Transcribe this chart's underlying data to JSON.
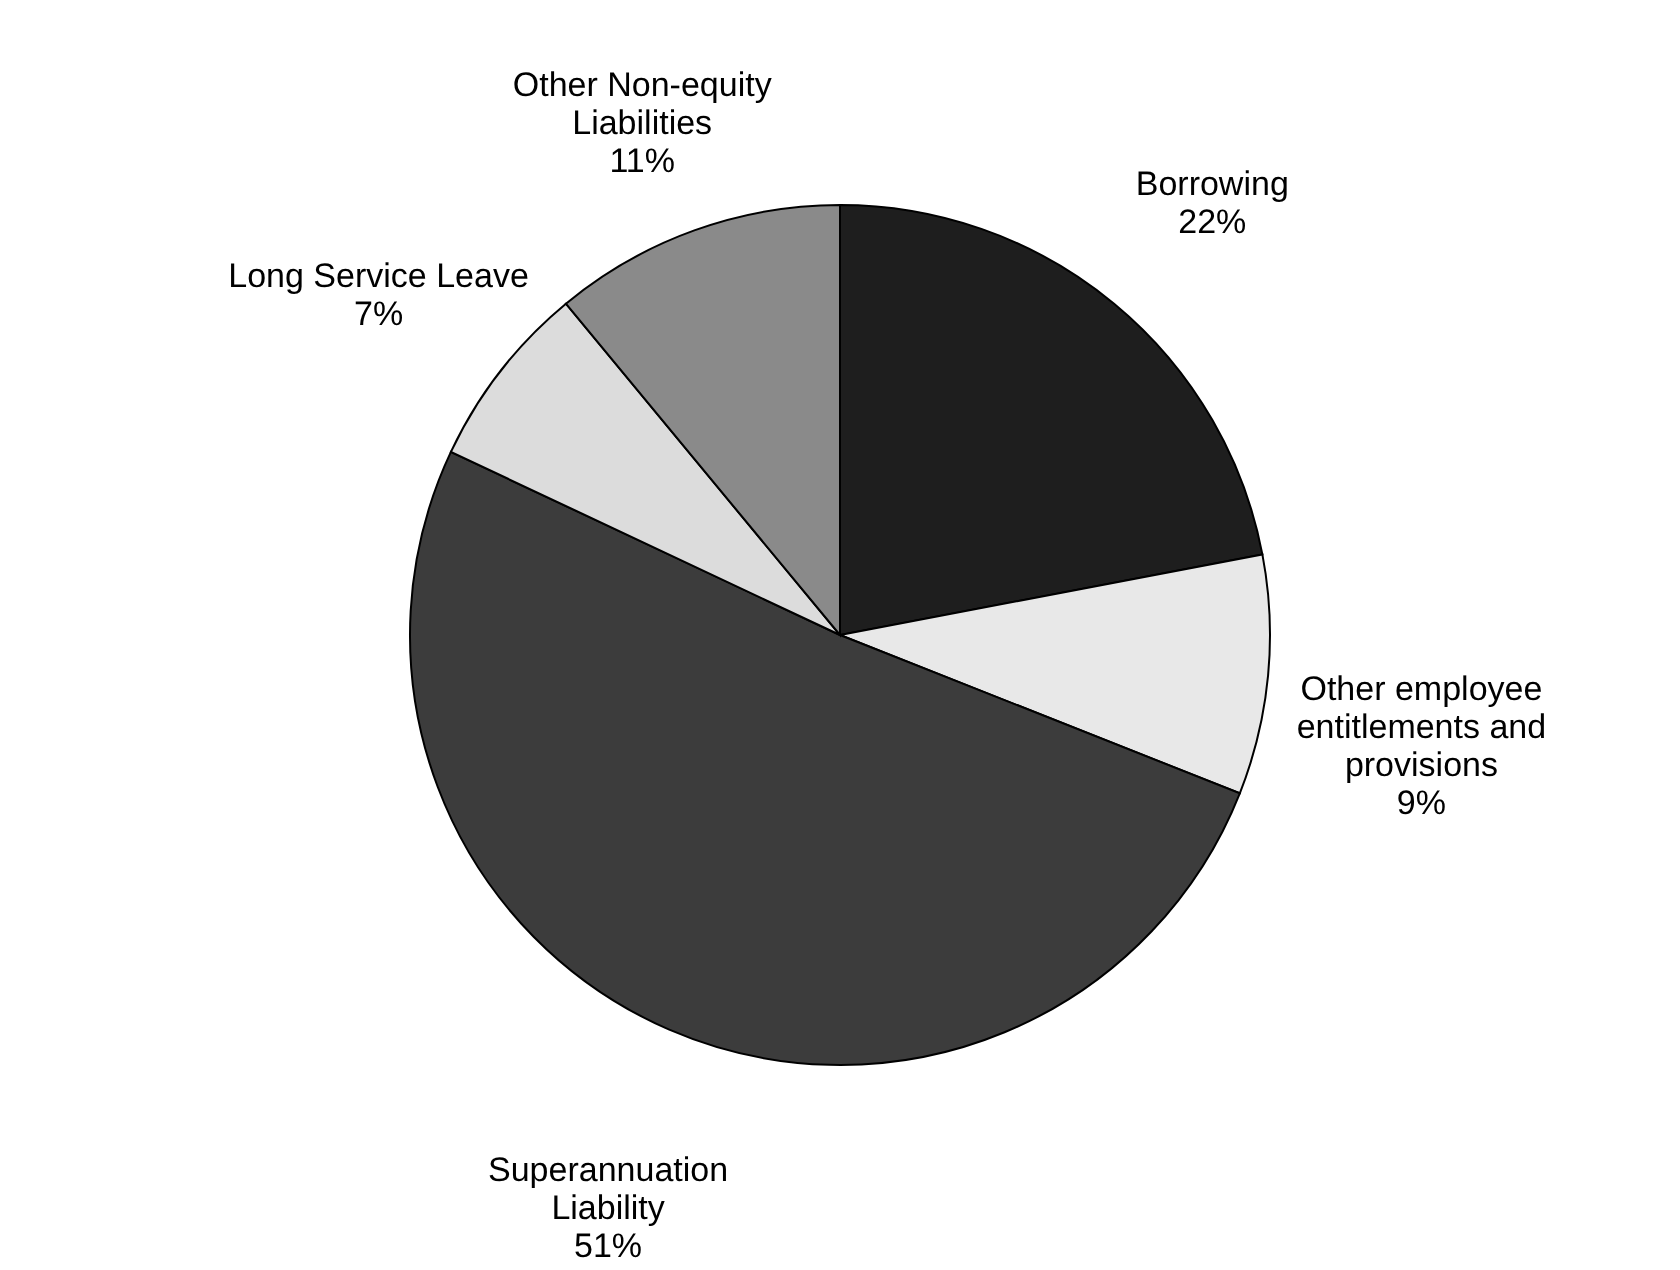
{
  "chart_data": {
    "type": "pie",
    "categories": [
      "Borrowing",
      "Other employee\nentitlements and\nprovisions",
      "Superannuation\nLiability",
      "Long Service Leave",
      "Other Non-equity\nLiabilities"
    ],
    "values": [
      22,
      9,
      51,
      7,
      11
    ],
    "value_labels": [
      "22%",
      "9%",
      "51%",
      "7%",
      "11%"
    ],
    "colors": [
      "#1e1e1e",
      "#e8e8e8",
      "#3c3c3c",
      "#dcdcdc",
      "#8a8a8a"
    ],
    "legend": false
  }
}
